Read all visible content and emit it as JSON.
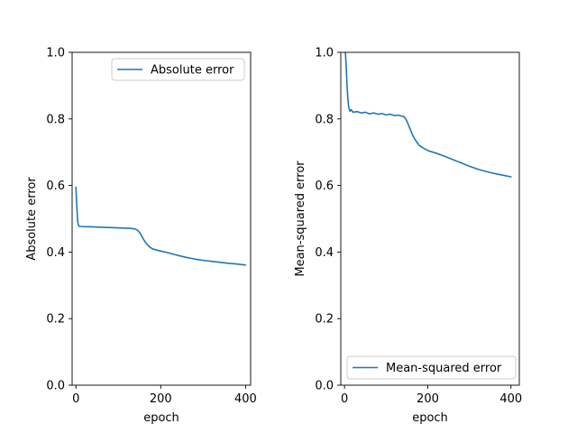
{
  "series_color": "#1f77b4",
  "chart_data": [
    {
      "type": "line",
      "title": "",
      "xlabel": "epoch",
      "ylabel": "Absolute error",
      "xlim": [
        -9,
        412
      ],
      "ylim": [
        0.0,
        1.0
      ],
      "xticks": [
        0,
        200,
        400
      ],
      "xtick_labels": [
        "0",
        "200",
        "400"
      ],
      "yticks": [
        0.0,
        0.2,
        0.4,
        0.6,
        0.8,
        1.0
      ],
      "ytick_labels": [
        "0.0",
        "0.2",
        "0.4",
        "0.6",
        "0.8",
        "1.0"
      ],
      "grid": false,
      "legend_position": "top-right",
      "series": [
        {
          "name": "Absolute error",
          "x": [
            0,
            1,
            2,
            3,
            4,
            5,
            6,
            8,
            10,
            14,
            20,
            30,
            50,
            70,
            90,
            110,
            130,
            140,
            145,
            150,
            155,
            160,
            165,
            170,
            175,
            180,
            190,
            200,
            220,
            240,
            260,
            280,
            300,
            320,
            340,
            360,
            380,
            400
          ],
          "y": [
            0.595,
            0.565,
            0.54,
            0.515,
            0.495,
            0.485,
            0.48,
            0.477,
            0.477,
            0.477,
            0.476,
            0.476,
            0.475,
            0.474,
            0.473,
            0.472,
            0.471,
            0.469,
            0.466,
            0.459,
            0.448,
            0.437,
            0.427,
            0.42,
            0.414,
            0.41,
            0.406,
            0.403,
            0.397,
            0.39,
            0.384,
            0.379,
            0.375,
            0.372,
            0.369,
            0.366,
            0.364,
            0.361
          ]
        }
      ]
    },
    {
      "type": "line",
      "title": "",
      "xlabel": "epoch",
      "ylabel": "Mean-squared error",
      "xlim": [
        -9,
        420
      ],
      "ylim": [
        0.0,
        1.0
      ],
      "xticks": [
        0,
        200,
        400
      ],
      "xtick_labels": [
        "0",
        "200",
        "400"
      ],
      "yticks": [
        0.0,
        0.2,
        0.4,
        0.6,
        0.8,
        1.0
      ],
      "ytick_labels": [
        "0.0",
        "0.2",
        "0.4",
        "0.6",
        "0.8",
        "1.0"
      ],
      "grid": false,
      "legend_position": "bottom-right",
      "series": [
        {
          "name": "Mean-squared error",
          "x": [
            0,
            2,
            4,
            6,
            8,
            10,
            13,
            16,
            20,
            30,
            40,
            50,
            60,
            70,
            80,
            90,
            100,
            110,
            120,
            130,
            140,
            145,
            150,
            155,
            160,
            165,
            170,
            175,
            180,
            190,
            200,
            220,
            240,
            260,
            280,
            300,
            320,
            340,
            360,
            380,
            400
          ],
          "y": [
            1.02,
            1.0,
            0.96,
            0.9,
            0.86,
            0.835,
            0.823,
            0.828,
            0.82,
            0.822,
            0.818,
            0.82,
            0.815,
            0.818,
            0.814,
            0.816,
            0.812,
            0.814,
            0.81,
            0.811,
            0.808,
            0.804,
            0.793,
            0.778,
            0.762,
            0.748,
            0.737,
            0.728,
            0.72,
            0.712,
            0.705,
            0.697,
            0.688,
            0.678,
            0.668,
            0.658,
            0.649,
            0.642,
            0.636,
            0.631,
            0.626
          ]
        }
      ]
    }
  ]
}
